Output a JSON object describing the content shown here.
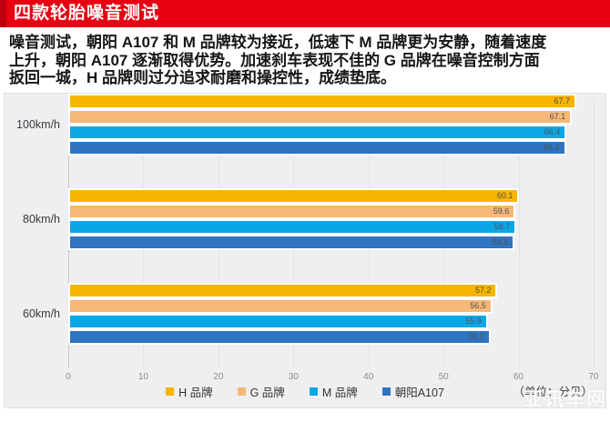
{
  "header": {
    "title": "四款轮胎噪音测试"
  },
  "paragraph": {
    "lines": [
      "噪音测试，朝阳 A107 和 M 品牌较为接近，低速下 M 品牌更为安静，随着速度",
      "上升，朝阳 A107 逐渐取得优势。加速刹车表现不佳的 G 品牌在噪音控制方面",
      "扳回一城，H 品牌则过分追求耐磨和操控性，成绩垫底。"
    ]
  },
  "chart_data": {
    "type": "bar",
    "orientation": "horizontal",
    "title": "四款轮胎噪音测试",
    "categories": [
      "100km/h",
      "80km/h",
      "60km/h"
    ],
    "series": [
      {
        "name": "H 品牌",
        "color": "#f7b500",
        "values": [
          67.7,
          60.1,
          57.2
        ]
      },
      {
        "name": "G 品牌",
        "color": "#f6b877",
        "values": [
          67.1,
          59.6,
          56.5
        ]
      },
      {
        "name": "M 品牌",
        "color": "#0aa7e6",
        "values": [
          66.4,
          59.7,
          55.9
        ]
      },
      {
        "name": "朝阳A107",
        "color": "#2f74c0",
        "values": [
          66.3,
          59.5,
          56.3
        ]
      }
    ],
    "xlim": [
      0,
      70
    ],
    "xticks": [
      0,
      10,
      20,
      30,
      40,
      50,
      60,
      70
    ],
    "xlabel": "",
    "ylabel": "",
    "unit_label": "（单位：分贝）",
    "grid": true,
    "legend_position": "bottom",
    "value_labels": true
  },
  "watermark": {
    "text": "亚讯车网"
  },
  "colors": {
    "banner_red": "#e60012",
    "banner_stripe": "#c00010",
    "panel_bg": "#efeff1",
    "gridline": "#e3e3e6",
    "series_yellow": "#f7b500",
    "series_orange": "#f6b877",
    "series_cyan": "#0aa7e6",
    "series_blue": "#2f74c0"
  }
}
